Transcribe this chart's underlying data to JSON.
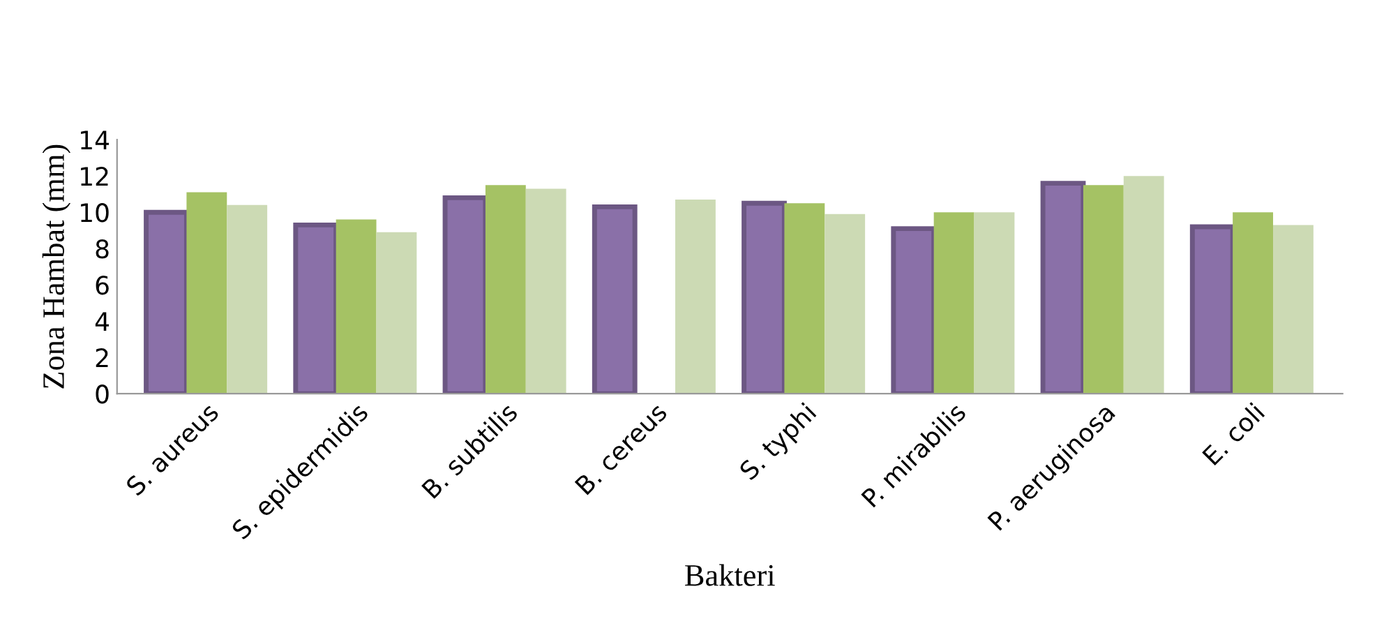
{
  "chart_data": {
    "type": "bar",
    "xlabel": "Bakteri",
    "ylabel": "Zona Hambat (mm)",
    "categories": [
      "S. aureus",
      "S. epidermidis",
      "B. subtilis",
      "B. cereus",
      "S. typhi",
      "P. mirabilis",
      "P. aeruginosa",
      "E. coli"
    ],
    "series": [
      {
        "color": "#8a70a8",
        "values": [
          10.0,
          9.3,
          10.8,
          10.3,
          10.5,
          9.1,
          11.6,
          9.2
        ]
      },
      {
        "color": "#a5c264",
        "values": [
          11.1,
          9.6,
          11.5,
          null,
          10.5,
          10.0,
          11.5,
          10.0
        ]
      },
      {
        "color": "#ccdab4",
        "values": [
          10.4,
          8.9,
          11.3,
          10.7,
          9.9,
          10.0,
          12.0,
          9.3
        ]
      }
    ],
    "ylim": [
      0,
      14
    ],
    "yticks": [
      0,
      2,
      4,
      6,
      8,
      10,
      12,
      14
    ],
    "grid": false,
    "legend": false
  }
}
